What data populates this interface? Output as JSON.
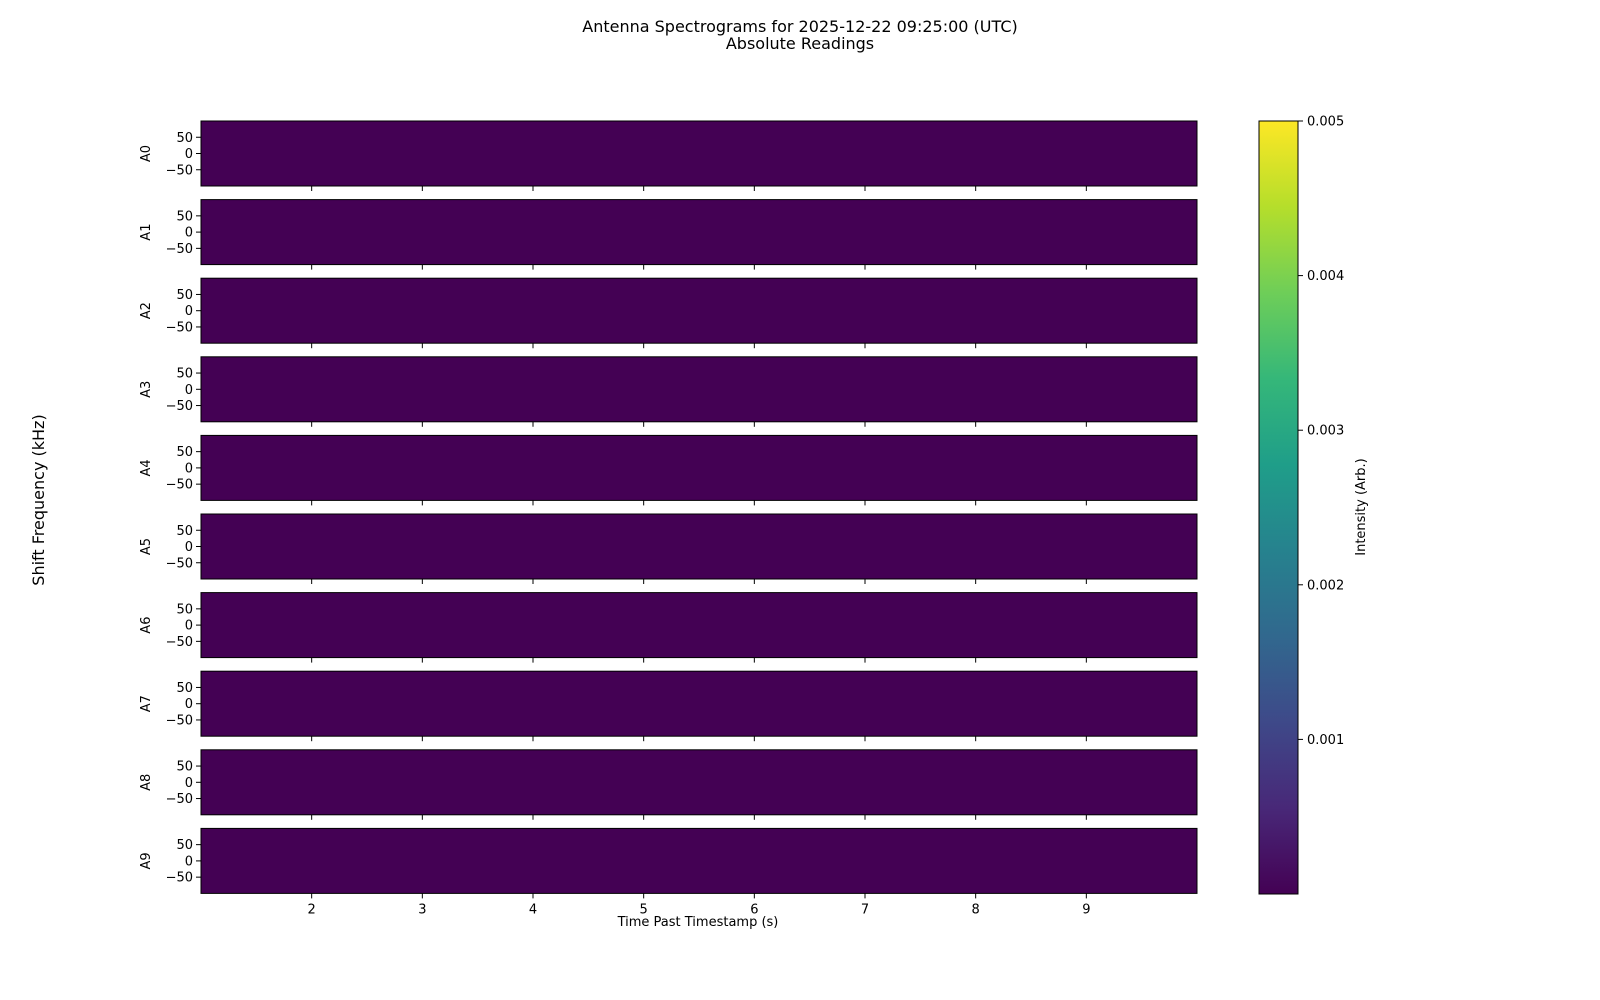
{
  "chart_data": {
    "type": "heatmap",
    "title": "Antenna Spectrograms for 2025-12-22 09:25:00 (UTC)",
    "subtitle": "Absolute Readings",
    "xlabel": "Time Past Timestamp (s)",
    "ylabel": "Shift Frequency (kHz)",
    "xlim": [
      1,
      10
    ],
    "ylim": [
      -100,
      100
    ],
    "x_ticks": [
      2,
      3,
      4,
      5,
      6,
      7,
      8,
      9
    ],
    "y_ticks": [
      50,
      0,
      -50
    ],
    "antennas": [
      "A0",
      "A1",
      "A2",
      "A3",
      "A4",
      "A5",
      "A6",
      "A7",
      "A8",
      "A9"
    ],
    "colorbar": {
      "label": "Intensity (Arb.)",
      "colormap": "viridis",
      "range": [
        0,
        0.005
      ],
      "ticks": [
        0.001,
        0.002,
        0.003,
        0.004,
        0.005
      ],
      "colors": [
        "#440154",
        "#482878",
        "#3e4989",
        "#31688e",
        "#26828e",
        "#1f9e89",
        "#35b779",
        "#6ece58",
        "#b5de2b",
        "#fde725"
      ]
    },
    "fill_color": "#440154"
  }
}
